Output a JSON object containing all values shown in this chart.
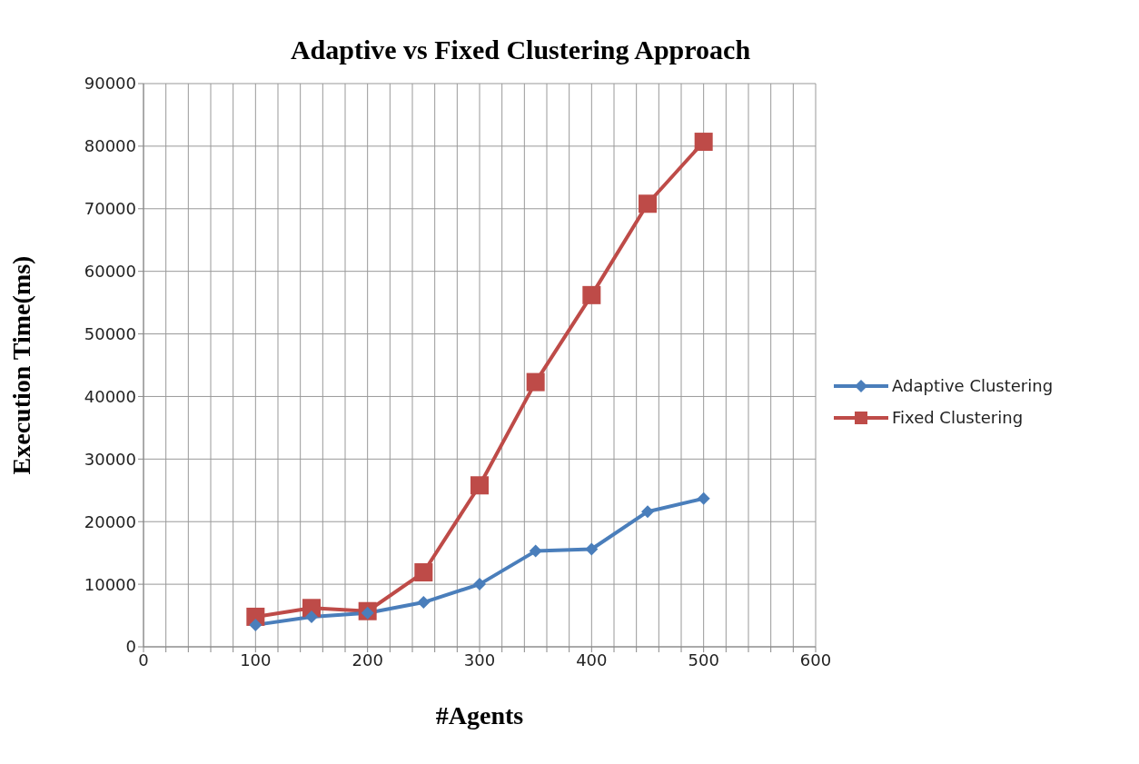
{
  "chart_data": {
    "type": "line",
    "title": "Adaptive vs Fixed Clustering Approach",
    "xlabel": "#Agents",
    "ylabel": "Execution Time(ms)",
    "x": [
      100,
      150,
      200,
      250,
      300,
      350,
      400,
      450,
      500
    ],
    "series": [
      {
        "name": "Adaptive Clustering",
        "color": "#4a7ebb",
        "marker": "diamond",
        "values": [
          3500,
          4800,
          5400,
          7100,
          10000,
          15300,
          15600,
          21600,
          23700
        ]
      },
      {
        "name": "Fixed Clustering",
        "color": "#be4b48",
        "marker": "square",
        "values": [
          4800,
          6200,
          5700,
          11900,
          25800,
          42300,
          56200,
          70800,
          80700
        ]
      }
    ],
    "xlim": [
      0,
      600
    ],
    "xticks": [
      0,
      {
        "value": 20,
        "label": null
      },
      {
        "value": 40,
        "label": null
      },
      {
        "value": 60,
        "label": null
      },
      {
        "value": 80,
        "label": null
      },
      100,
      {
        "value": 120,
        "label": null
      },
      {
        "value": 140,
        "label": null
      },
      {
        "value": 160,
        "label": null
      },
      {
        "value": 180,
        "label": null
      },
      200,
      {
        "value": 220,
        "label": null
      },
      {
        "value": 240,
        "label": null
      },
      {
        "value": 260,
        "label": null
      },
      {
        "value": 280,
        "label": null
      },
      300,
      {
        "value": 320,
        "label": null
      },
      {
        "value": 340,
        "label": null
      },
      {
        "value": 360,
        "label": null
      },
      {
        "value": 380,
        "label": null
      },
      400,
      {
        "value": 420,
        "label": null
      },
      {
        "value": 440,
        "label": null
      },
      {
        "value": 460,
        "label": null
      },
      {
        "value": 480,
        "label": null
      },
      500,
      {
        "value": 520,
        "label": null
      },
      {
        "value": 540,
        "label": null
      },
      {
        "value": 560,
        "label": null
      },
      {
        "value": 580,
        "label": null
      },
      600
    ],
    "ylim": [
      0,
      90000
    ],
    "yticks": [
      0,
      10000,
      20000,
      30000,
      40000,
      50000,
      60000,
      70000,
      80000,
      90000
    ],
    "grid": true,
    "legend": "right",
    "line_style": "solid"
  }
}
